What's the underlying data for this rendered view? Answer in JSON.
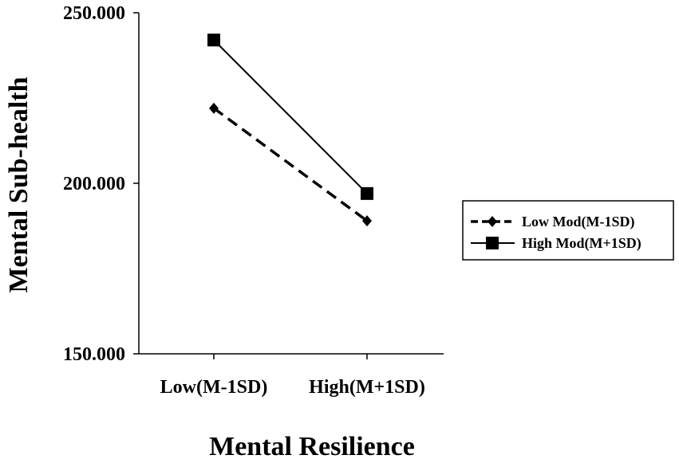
{
  "chart_data": {
    "type": "line",
    "categories": [
      "Low(M-1SD)",
      "High(M+1SD)"
    ],
    "series": [
      {
        "name": "Low Mod(M-1SD)",
        "values": [
          222,
          189
        ],
        "line_style": "dashed",
        "marker": "diamond",
        "color": "#000000"
      },
      {
        "name": "High Mod(M+1SD)",
        "values": [
          242,
          197
        ],
        "line_style": "solid",
        "marker": "square",
        "color": "#000000"
      }
    ],
    "xlabel": "Mental Resilience",
    "ylabel": "Mental Sub-health",
    "ylim": [
      150,
      250
    ],
    "y_ticks": [
      150,
      200,
      250
    ],
    "y_tick_labels": [
      "150.000",
      "200.000",
      "250.000"
    ],
    "grid": false,
    "legend_position": "right"
  }
}
